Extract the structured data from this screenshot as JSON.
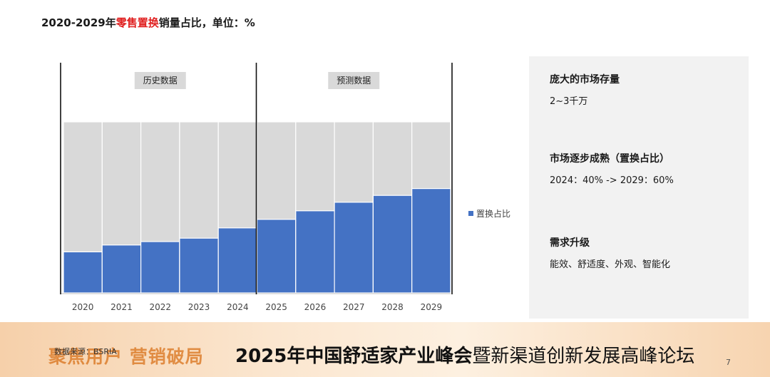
{
  "title": {
    "prefix": "2020-2029年",
    "highlight": "零售置换",
    "suffix": "销量占比，单位：%"
  },
  "colors": {
    "bar": "#4472c4",
    "background_bar": "#d9d9d9",
    "highlight_text": "#e02020",
    "side_panel": "#f2f2f2"
  },
  "chart_data": {
    "type": "bar",
    "categories": [
      "2020",
      "2021",
      "2022",
      "2023",
      "2024",
      "2025",
      "2026",
      "2027",
      "2028",
      "2029"
    ],
    "series": [
      {
        "name": "置换占比",
        "values": [
          24,
          28,
          30,
          32,
          38,
          43,
          48,
          53,
          57,
          61
        ]
      }
    ],
    "ylim": [
      0,
      100
    ],
    "sections": [
      {
        "label": "历史数据",
        "categories": [
          "2020",
          "2021",
          "2022",
          "2023",
          "2024"
        ]
      },
      {
        "label": "预测数据",
        "categories": [
          "2025",
          "2026",
          "2027",
          "2028",
          "2029"
        ]
      }
    ],
    "legend_position": "right",
    "grid": false
  },
  "panel": [
    {
      "heading": "庞大的市场存量",
      "value": "2~3千万"
    },
    {
      "heading": "市场逐步成熟（置换占比）",
      "value": "2024：40% -> 2029：60%"
    },
    {
      "heading": "需求升级",
      "value": "能效、舒适度、外观、智能化"
    }
  ],
  "footer": {
    "slogan": "聚焦用户 营销破局",
    "conference": "2025年中国舒适家产业峰会",
    "conference_sub": "暨新渠道创新发展高峰论坛",
    "source": "数据来源：BSRIA",
    "page": "7"
  }
}
